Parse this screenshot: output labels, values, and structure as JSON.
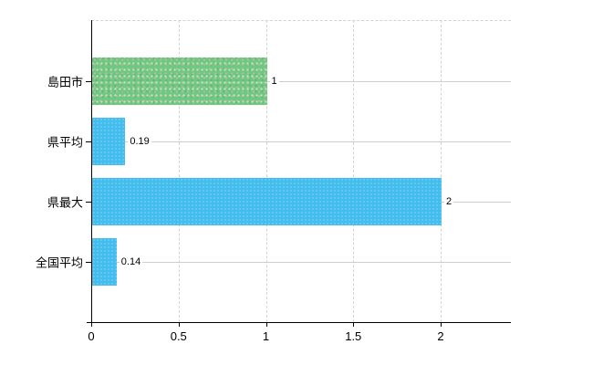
{
  "chart_data": {
    "type": "bar",
    "orientation": "horizontal",
    "title": "",
    "xlabel": "",
    "ylabel": "",
    "categories": [
      "島田市",
      "県平均",
      "県最大",
      "全国平均"
    ],
    "values": [
      1,
      0.19,
      2,
      0.14
    ],
    "value_labels": [
      "1",
      "0.19",
      "2",
      "0.14"
    ],
    "bar_styles": [
      "green-dotted",
      "blue",
      "blue",
      "blue"
    ],
    "bar_colors": [
      "#6aca7e",
      "#41bdee",
      "#41bdee",
      "#41bdee"
    ],
    "x_ticks": [
      0,
      0.5,
      1,
      1.5,
      2
    ],
    "x_tick_labels": [
      "0",
      "0.5",
      "1",
      "1.5",
      "2"
    ],
    "xlim": [
      0,
      2.4
    ],
    "grid": "vertical dashed gridlines at ticks; horizontal line at each category center; dashed top border",
    "legend": "none"
  },
  "colors": {
    "background": "#ffffff",
    "axis": "#000000",
    "text": "#000000",
    "gridline": "#d2d2d2",
    "category_line": "#c9d2c9",
    "bar_green": "#6aca7e",
    "bar_blue": "#41bdee"
  }
}
